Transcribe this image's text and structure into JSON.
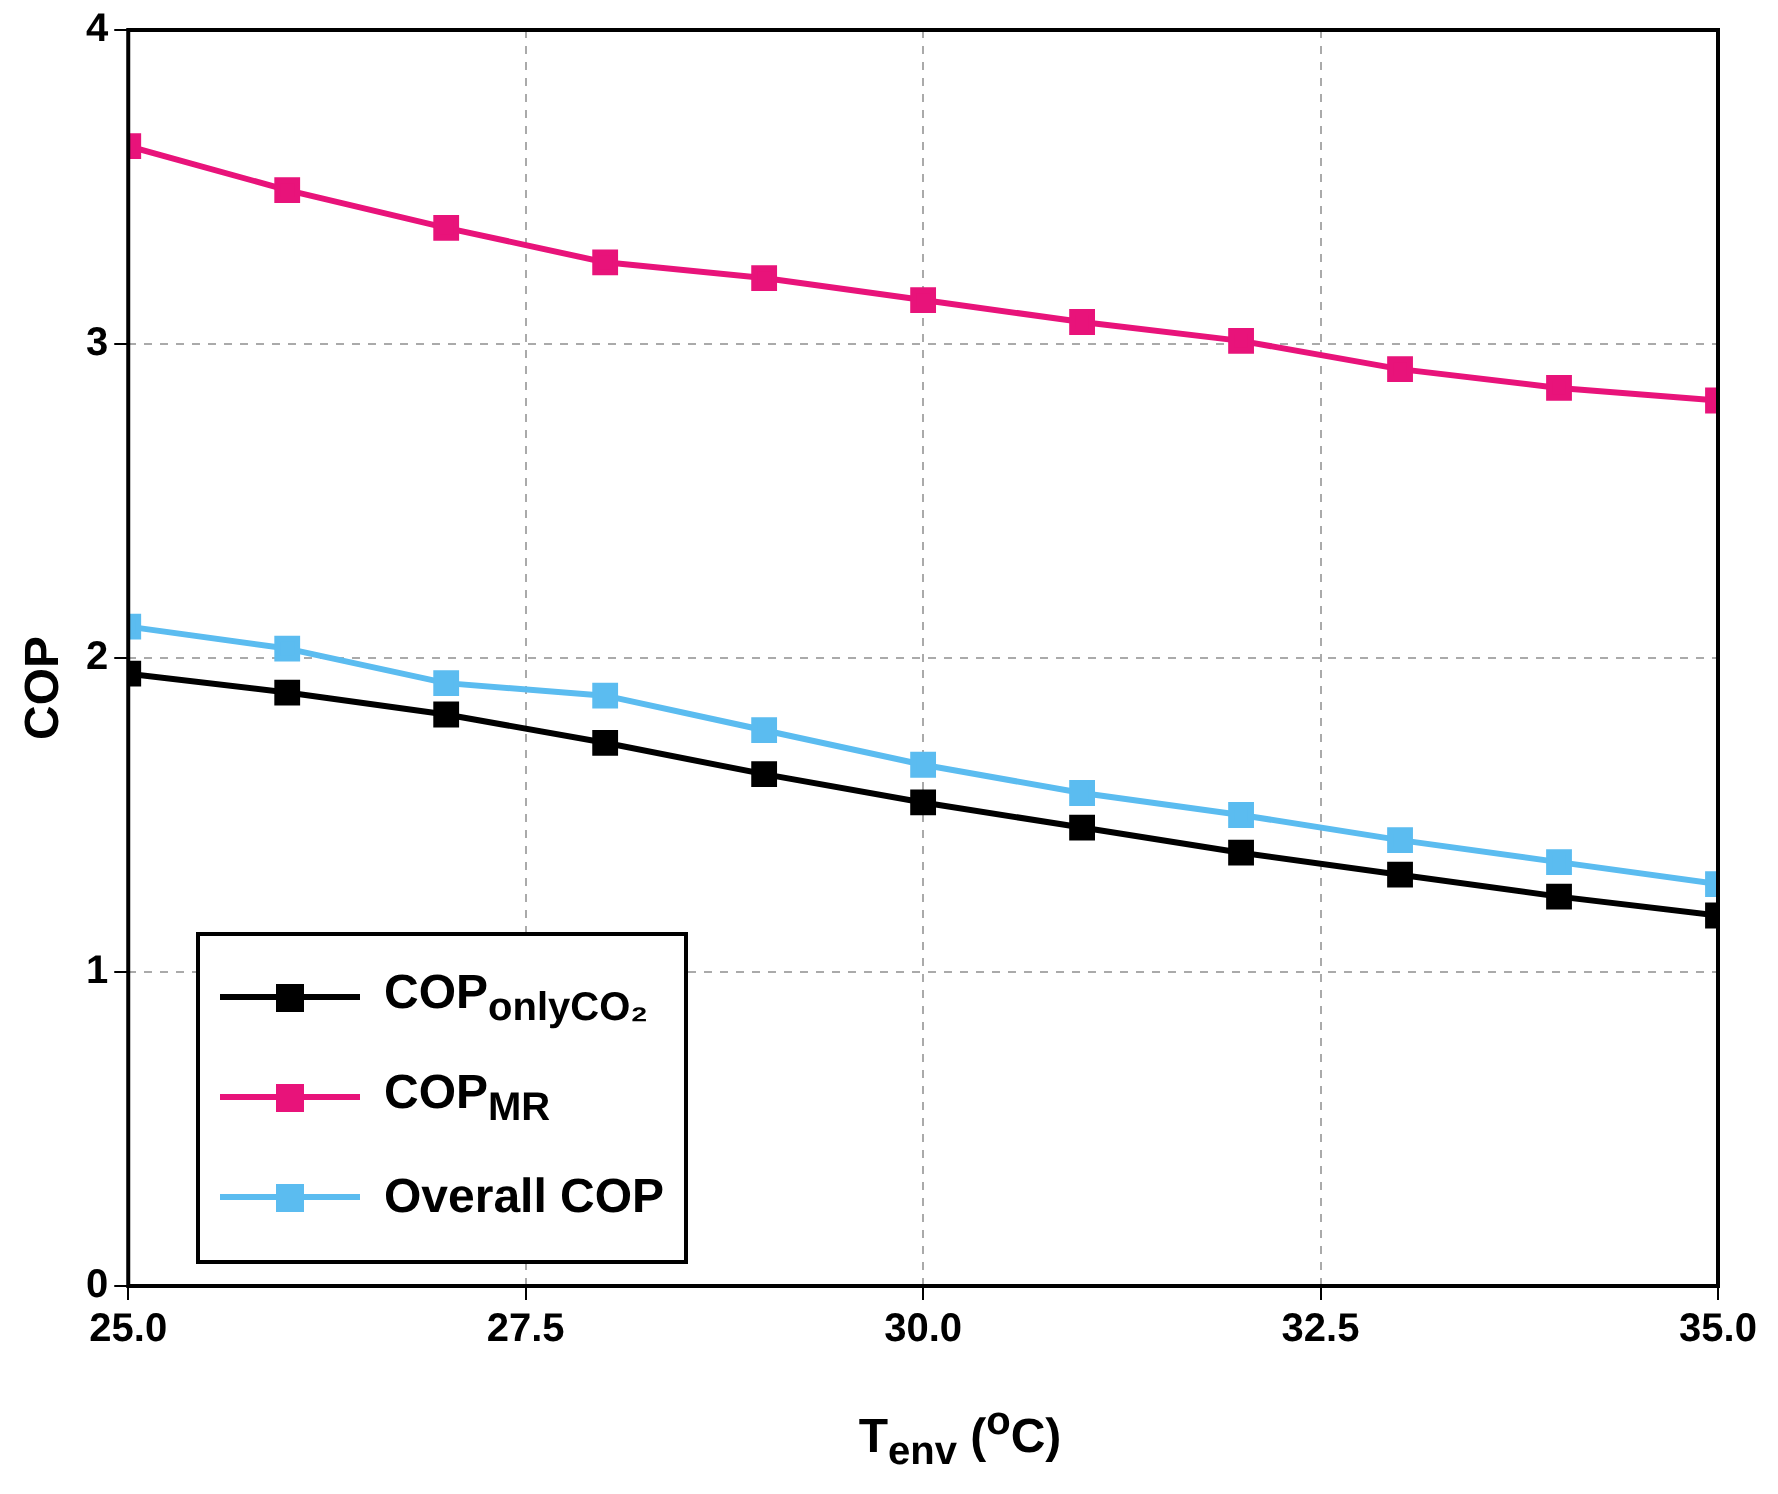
{
  "chart_data": {
    "type": "line",
    "xlabel": "T$_{env}$ ($^{o}$C)",
    "ylabel": "COP",
    "x": [
      25,
      26,
      27,
      28,
      29,
      30,
      31,
      32,
      33,
      34,
      35
    ],
    "series": [
      {
        "name": "COP$_{onlyCO₂}$",
        "color": "#000000",
        "values": [
          1.95,
          1.89,
          1.82,
          1.73,
          1.63,
          1.54,
          1.46,
          1.38,
          1.31,
          1.24,
          1.18
        ]
      },
      {
        "name": "COP$_{MR}$",
        "color": "#e8137a",
        "values": [
          3.63,
          3.49,
          3.37,
          3.26,
          3.21,
          3.14,
          3.07,
          3.01,
          2.92,
          2.86,
          2.82
        ]
      },
      {
        "name": "Overall COP",
        "color": "#5bbcf0",
        "values": [
          2.1,
          2.03,
          1.92,
          1.88,
          1.77,
          1.66,
          1.57,
          1.5,
          1.42,
          1.35,
          1.28
        ]
      }
    ],
    "xlim": [
      25,
      35
    ],
    "xticks": [
      {
        "value": 25,
        "label": "25.0"
      },
      {
        "value": 27.5,
        "label": "27.5"
      },
      {
        "value": 30,
        "label": "30.0"
      },
      {
        "value": 32.5,
        "label": "32.5"
      },
      {
        "value": 35,
        "label": "35.0"
      }
    ],
    "ylim": [
      0,
      4
    ],
    "yticks": [
      0,
      1,
      2,
      3,
      4
    ],
    "grid": true,
    "legend": "bottom left",
    "marker": "square",
    "line_style": "solid"
  }
}
